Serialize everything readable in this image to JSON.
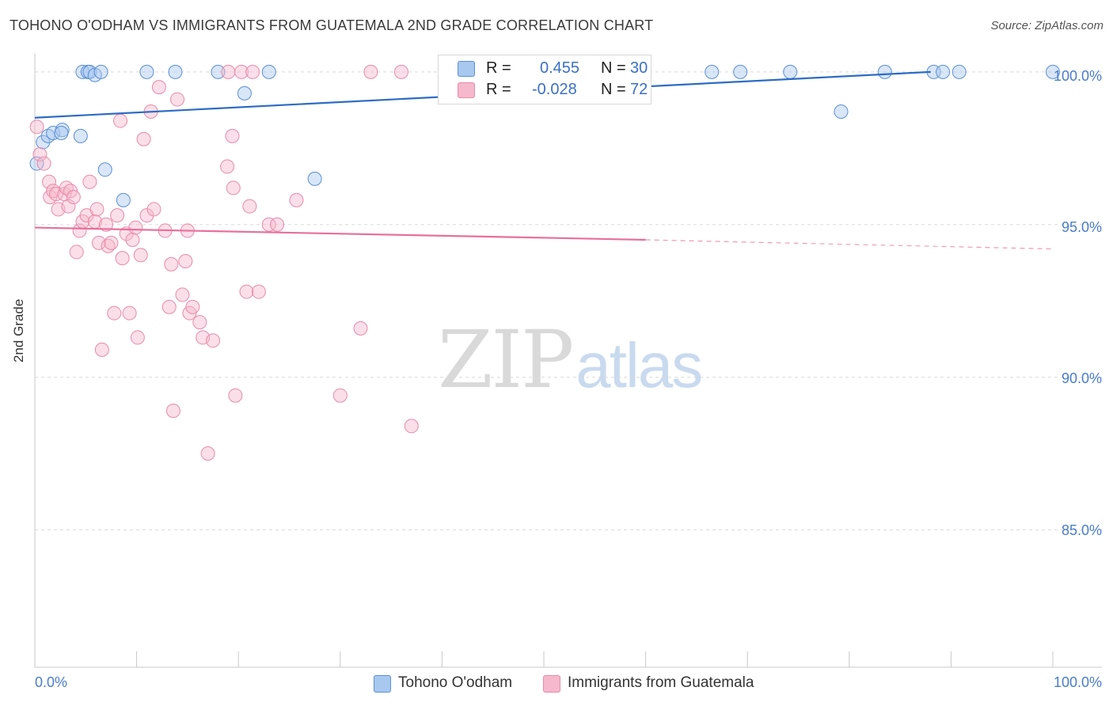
{
  "title": "TOHONO O'ODHAM VS IMMIGRANTS FROM GUATEMALA 2ND GRADE CORRELATION CHART",
  "source": "Source: ZipAtlas.com",
  "watermark": {
    "zip": "ZIP",
    "atlas": "atlas"
  },
  "legend": {
    "rows": [
      {
        "r_label": "R =",
        "r_value": "0.455",
        "n_label": "N =",
        "n_value": "30"
      },
      {
        "r_label": "R =",
        "r_value": "-0.028",
        "n_label": "N =",
        "n_value": "72"
      }
    ]
  },
  "colors": {
    "blue_fill": "#a8c8f0",
    "blue_stroke": "#5b8fd6",
    "blue_line": "#2d6cc4",
    "pink_fill": "#f6b8cc",
    "pink_stroke": "#e88aa8",
    "pink_line": "#e8709a",
    "grid": "#d9d9d9",
    "tick_text": "#4a7cc9"
  },
  "chart_data": {
    "type": "scatter",
    "title": "TOHONO O'ODHAM VS IMMIGRANTS FROM GUATEMALA 2ND GRADE CORRELATION CHART",
    "xlabel": "",
    "ylabel": "2nd Grade",
    "xlim": [
      0,
      100
    ],
    "ylim": [
      80.5,
      100.8
    ],
    "x_tick_labels": [
      "0.0%",
      "100.0%"
    ],
    "y_ticks": [
      100,
      95,
      90,
      85
    ],
    "y_tick_labels": [
      "100.0%",
      "95.0%",
      "90.0%",
      "85.0%"
    ],
    "grid": true,
    "legend_position": "bottom",
    "series": [
      {
        "name": "Tohono O'odham",
        "color": "#5b8fd6",
        "trend": {
          "x": [
            0,
            88
          ],
          "y": [
            98.5,
            100.0
          ]
        },
        "points": [
          [
            0.2,
            97.0
          ],
          [
            0.8,
            97.7
          ],
          [
            1.3,
            97.9
          ],
          [
            1.8,
            98.0
          ],
          [
            2.7,
            98.1
          ],
          [
            2.6,
            98.0
          ],
          [
            4.7,
            100.0
          ],
          [
            5.2,
            100.0
          ],
          [
            5.4,
            100.0
          ],
          [
            5.9,
            99.9
          ],
          [
            6.5,
            100.0
          ],
          [
            4.5,
            97.9
          ],
          [
            6.9,
            96.8
          ],
          [
            8.7,
            95.8
          ],
          [
            11.0,
            100.0
          ],
          [
            13.8,
            100.0
          ],
          [
            18.0,
            100.0
          ],
          [
            20.6,
            99.3
          ],
          [
            23.0,
            100.0
          ],
          [
            27.5,
            96.5
          ],
          [
            47.5,
            100.0
          ],
          [
            66.5,
            100.0
          ],
          [
            69.3,
            100.0
          ],
          [
            74.2,
            100.0
          ],
          [
            79.2,
            98.7
          ],
          [
            83.5,
            100.0
          ],
          [
            88.3,
            100.0
          ],
          [
            89.2,
            100.0
          ],
          [
            90.8,
            100.0
          ],
          [
            100.0,
            100.0
          ]
        ]
      },
      {
        "name": "Immigrants from Guatemala",
        "color": "#e88aa8",
        "trend": {
          "x": [
            0,
            60
          ],
          "y": [
            94.9,
            94.5
          ]
        },
        "trend_dashed": {
          "x": [
            60,
            100
          ],
          "y": [
            94.5,
            94.2
          ]
        },
        "points": [
          [
            0.2,
            98.2
          ],
          [
            0.5,
            97.3
          ],
          [
            0.9,
            97.0
          ],
          [
            1.4,
            96.4
          ],
          [
            1.5,
            95.9
          ],
          [
            1.8,
            96.1
          ],
          [
            2.1,
            96.0
          ],
          [
            2.3,
            95.5
          ],
          [
            2.9,
            96.0
          ],
          [
            3.1,
            96.2
          ],
          [
            3.3,
            95.6
          ],
          [
            3.5,
            96.1
          ],
          [
            3.8,
            95.9
          ],
          [
            4.1,
            94.1
          ],
          [
            4.4,
            94.8
          ],
          [
            4.7,
            95.1
          ],
          [
            5.1,
            95.3
          ],
          [
            5.4,
            96.4
          ],
          [
            5.9,
            95.1
          ],
          [
            6.1,
            95.5
          ],
          [
            6.3,
            94.4
          ],
          [
            6.6,
            90.9
          ],
          [
            7.0,
            95.0
          ],
          [
            7.2,
            94.3
          ],
          [
            7.5,
            94.4
          ],
          [
            7.8,
            92.1
          ],
          [
            8.1,
            95.3
          ],
          [
            8.4,
            98.4
          ],
          [
            8.6,
            93.9
          ],
          [
            9.0,
            94.7
          ],
          [
            9.3,
            92.1
          ],
          [
            9.6,
            94.5
          ],
          [
            9.9,
            94.9
          ],
          [
            10.1,
            91.3
          ],
          [
            10.4,
            94.0
          ],
          [
            10.7,
            97.8
          ],
          [
            11.0,
            95.3
          ],
          [
            11.4,
            98.7
          ],
          [
            11.7,
            95.5
          ],
          [
            12.2,
            99.5
          ],
          [
            12.8,
            94.8
          ],
          [
            13.2,
            92.3
          ],
          [
            13.4,
            93.7
          ],
          [
            13.6,
            88.9
          ],
          [
            14.0,
            99.1
          ],
          [
            14.5,
            92.7
          ],
          [
            14.8,
            93.8
          ],
          [
            15.0,
            94.8
          ],
          [
            15.2,
            92.1
          ],
          [
            15.5,
            92.3
          ],
          [
            16.2,
            91.8
          ],
          [
            16.5,
            91.3
          ],
          [
            17.0,
            87.5
          ],
          [
            17.5,
            91.2
          ],
          [
            18.9,
            96.9
          ],
          [
            19.0,
            100.0
          ],
          [
            19.4,
            97.9
          ],
          [
            19.5,
            96.2
          ],
          [
            19.7,
            89.4
          ],
          [
            20.3,
            100.0
          ],
          [
            20.8,
            92.8
          ],
          [
            21.1,
            95.6
          ],
          [
            21.4,
            100.0
          ],
          [
            22.0,
            92.8
          ],
          [
            23.0,
            95.0
          ],
          [
            23.8,
            95.0
          ],
          [
            25.7,
            95.8
          ],
          [
            30.0,
            89.4
          ],
          [
            32.0,
            91.6
          ],
          [
            33.0,
            100.0
          ],
          [
            36.0,
            100.0
          ],
          [
            37.0,
            88.4
          ]
        ]
      }
    ]
  },
  "bottom_legend": [
    {
      "label": "Tohono O'odham"
    },
    {
      "label": "Immigrants from Guatemala"
    }
  ]
}
